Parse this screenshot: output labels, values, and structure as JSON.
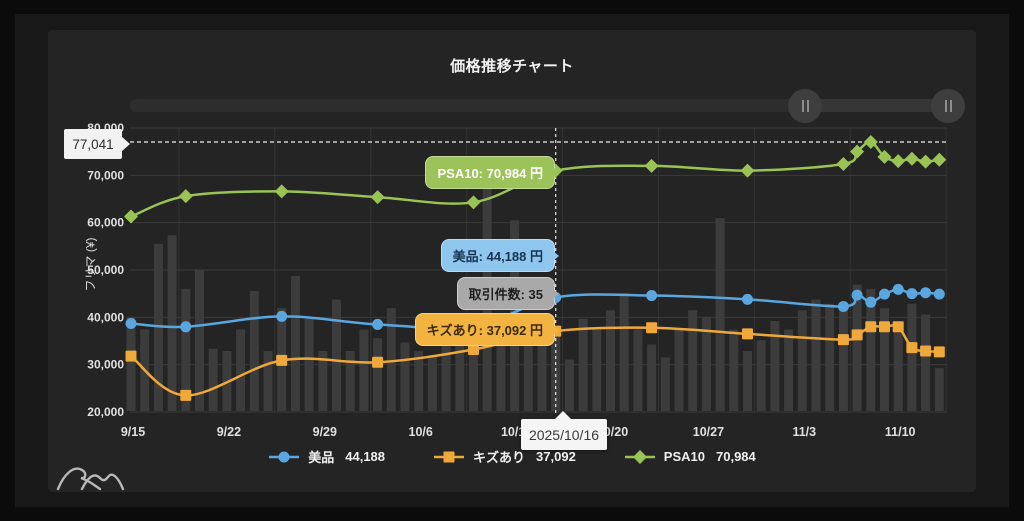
{
  "title": "価格推移チャート",
  "y_axis": {
    "label": "フリマ (¥)",
    "ticks": [
      "80,000",
      "70,000",
      "60,000",
      "50,000",
      "40,000",
      "30,000",
      "20,000"
    ],
    "min": 20000,
    "max": 80000
  },
  "x_axis": {
    "ticks": [
      "9/15",
      "9/22",
      "9/29",
      "10/6",
      "10/13",
      "10/20",
      "10/27",
      "11/3",
      "11/10"
    ]
  },
  "annotation": {
    "label": "77,041",
    "value": 77041
  },
  "crosshair": {
    "date": "2025/10/16",
    "day_index": 31
  },
  "tooltips": {
    "psa10": "PSA10: 70,984 円",
    "excellent": "美品: 44,188 円",
    "count": "取引件数: 35",
    "damaged": "キズあり: 37,092 円"
  },
  "legend": [
    {
      "name": "美品",
      "value": "44,188",
      "marker": "circle"
    },
    {
      "name": "キズあり",
      "value": "37,092",
      "marker": "square"
    },
    {
      "name": "PSA10",
      "value": "70,984",
      "marker": "diamond"
    }
  ],
  "slider": {
    "left_value": 0.81,
    "right_value": 0.98
  },
  "colors": {
    "excellent": "#5aa7e0",
    "damaged": "#efa93a",
    "psa10": "#9ac355",
    "bars": "#3c3c3c",
    "grid": "#3a3a3a",
    "grid_vertical": "#333333",
    "axis_text": "#e0e0e0",
    "crosshair": "#e8e8e8",
    "panel": "#242424"
  },
  "chart_data": {
    "type": "line",
    "title": "価格推移チャート",
    "ylabel": "フリマ (¥)",
    "ylim": [
      20000,
      80000
    ],
    "x_start_label": "9/15",
    "x_tick_labels": [
      "9/15",
      "9/22",
      "9/29",
      "10/6",
      "10/13",
      "10/20",
      "10/27",
      "11/3",
      "11/10"
    ],
    "x_unit": "days from 9/15 (tick every 7 days)",
    "legend_position": "bottom",
    "grid": true,
    "series": [
      {
        "name": "美品",
        "marker": "circle",
        "color": "#5aa7e0",
        "points": [
          [
            0,
            38700
          ],
          [
            4,
            38000
          ],
          [
            11,
            40200
          ],
          [
            18,
            38500
          ],
          [
            25,
            38100
          ],
          [
            31,
            44188
          ],
          [
            38,
            44600
          ],
          [
            45,
            43800
          ],
          [
            52,
            42300
          ],
          [
            53,
            44700
          ],
          [
            54,
            43200
          ],
          [
            55,
            44900
          ],
          [
            56,
            45900
          ],
          [
            57,
            45000
          ],
          [
            58,
            45200
          ],
          [
            59,
            44900
          ]
        ]
      },
      {
        "name": "キズあり",
        "marker": "square",
        "color": "#efa93a",
        "points": [
          [
            0,
            31800
          ],
          [
            4,
            23500
          ],
          [
            11,
            30900
          ],
          [
            18,
            30500
          ],
          [
            25,
            33200
          ],
          [
            31,
            37092
          ],
          [
            38,
            37800
          ],
          [
            45,
            36500
          ],
          [
            52,
            35300
          ],
          [
            53,
            36300
          ],
          [
            54,
            38000
          ],
          [
            55,
            38000
          ],
          [
            56,
            38000
          ],
          [
            57,
            33600
          ],
          [
            58,
            32900
          ],
          [
            59,
            32700
          ]
        ]
      },
      {
        "name": "PSA10",
        "marker": "diamond",
        "color": "#9ac355",
        "points": [
          [
            0,
            61300
          ],
          [
            4,
            65600
          ],
          [
            11,
            66600
          ],
          [
            18,
            65400
          ],
          [
            25,
            64300
          ],
          [
            31,
            70984
          ],
          [
            38,
            72000
          ],
          [
            45,
            71000
          ],
          [
            52,
            72400
          ],
          [
            53,
            75000
          ],
          [
            54,
            77041
          ],
          [
            55,
            73900
          ],
          [
            56,
            73000
          ],
          [
            57,
            73500
          ],
          [
            58,
            72900
          ],
          [
            59,
            73300
          ]
        ]
      }
    ],
    "bars": {
      "name": "取引件数",
      "unit": "count",
      "color": "#3c3c3c",
      "values": [
        44,
        38,
        78,
        82,
        57,
        66,
        29,
        28,
        38,
        56,
        28,
        48,
        63,
        43,
        28,
        52,
        28,
        38,
        34,
        48,
        32,
        28,
        26,
        37,
        32,
        30,
        105,
        40,
        89,
        38,
        36,
        35,
        24,
        43,
        38,
        47,
        55,
        38,
        31,
        25,
        38,
        47,
        44,
        90,
        38,
        28,
        33,
        42,
        38,
        47,
        52,
        50,
        47,
        59,
        57,
        48,
        40,
        50,
        45,
        20
      ]
    },
    "highlight": {
      "date": "2025/10/16",
      "values": {
        "美品": 44188,
        "キズあり": 37092,
        "PSA10": 70984,
        "取引件数": 35
      },
      "max_line_value": 77041
    }
  }
}
